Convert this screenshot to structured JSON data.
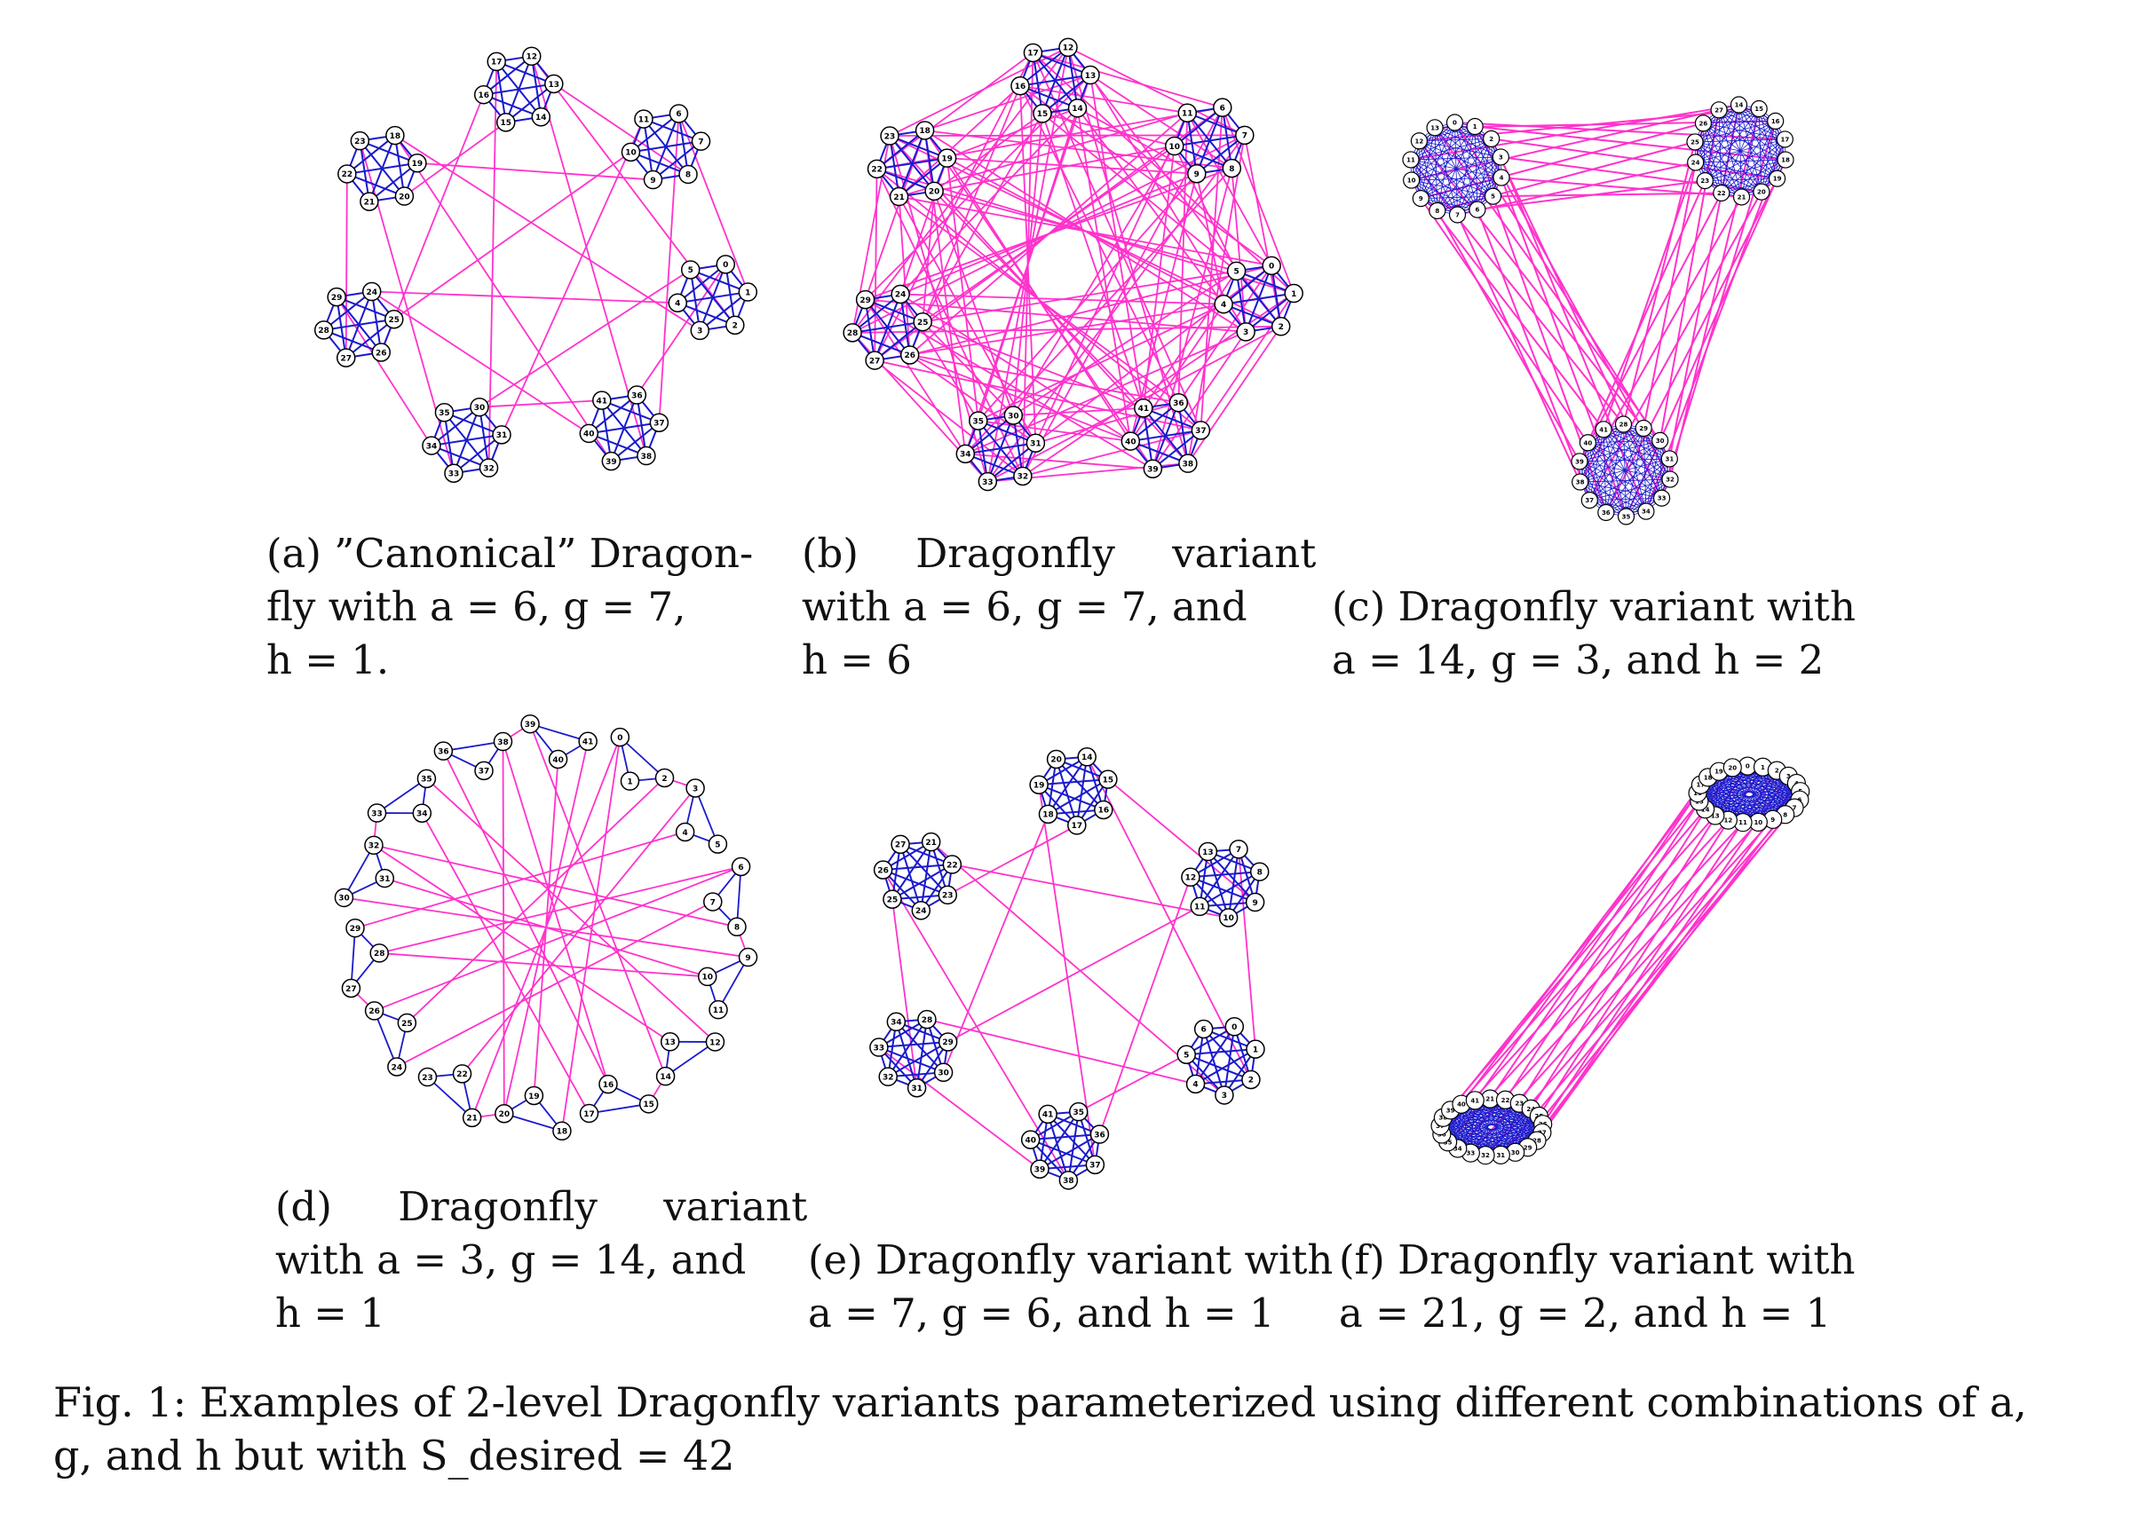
{
  "panels": [
    {
      "id": "a",
      "a": 6,
      "g": 7,
      "h": 1,
      "caption_lines": [
        "(a) ”Canonical” Dragon-",
        "fly with a = 6, g = 7,",
        "h = 1."
      ]
    },
    {
      "id": "b",
      "a": 6,
      "g": 7,
      "h": 6,
      "caption_lines": [
        "(b) Dragonfly variant",
        "with a = 6, g = 7, and",
        "h = 6"
      ]
    },
    {
      "id": "c",
      "a": 14,
      "g": 3,
      "h": 2,
      "caption_lines": [
        "(c) Dragonfly variant with",
        "a = 14, g = 3, and h = 2"
      ]
    },
    {
      "id": "d",
      "a": 3,
      "g": 14,
      "h": 1,
      "caption_lines": [
        "(d) Dragonfly variant",
        "with a = 3, g = 14, and",
        "h = 1"
      ]
    },
    {
      "id": "e",
      "a": 7,
      "g": 6,
      "h": 1,
      "caption_lines": [
        "(e) Dragonfly variant with",
        "a = 7, g = 6, and h = 1"
      ]
    },
    {
      "id": "f",
      "a": 21,
      "g": 2,
      "h": 1,
      "caption_lines": [
        "(f) Dragonfly variant with",
        "a = 21, g = 2, and h = 1"
      ]
    }
  ],
  "figure_caption": {
    "line1": "Fig. 1: Examples of 2-level Dragonfly variants parameterized using different combinations of a,",
    "line2": "g, and h but with S_desired = 42"
  },
  "colors": {
    "local_link": "#1a1acc",
    "global_link": "#ff33cc",
    "node_fill": "#ffffff",
    "node_stroke": "#000000"
  }
}
